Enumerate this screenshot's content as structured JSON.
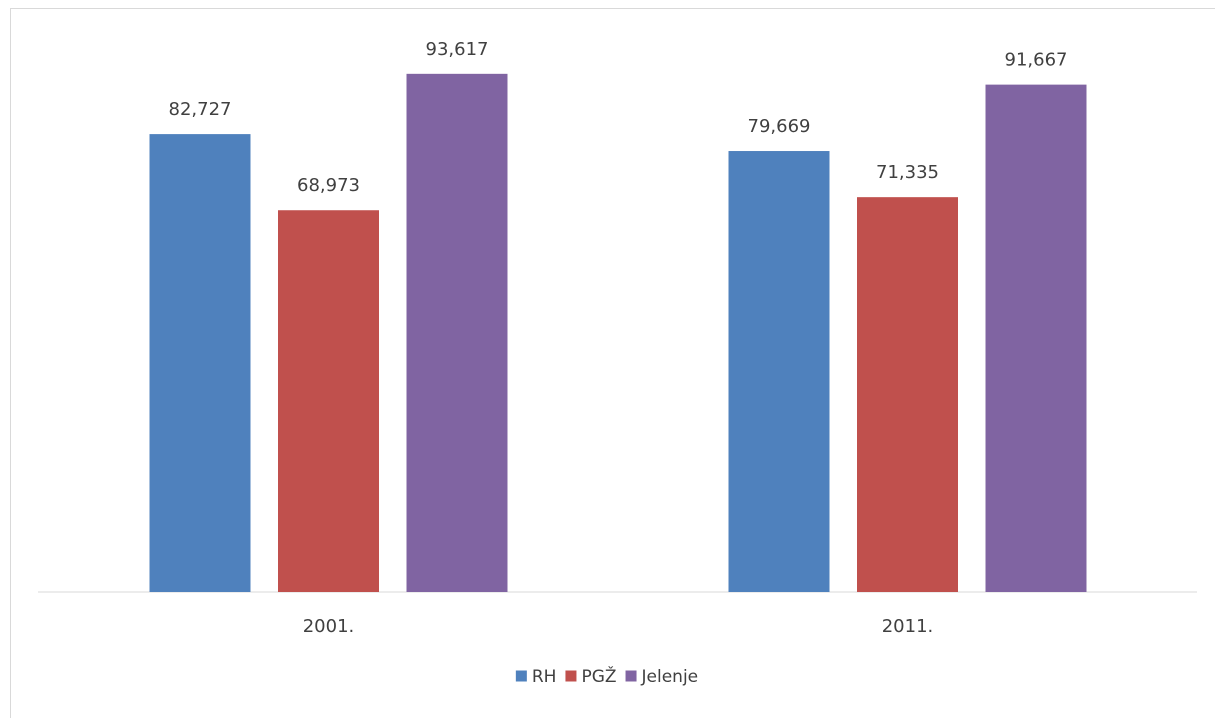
{
  "chart_data": {
    "type": "bar",
    "categories": [
      "2001.",
      "2011."
    ],
    "series": [
      {
        "name": "RH",
        "values": [
          82.727,
          79.669
        ],
        "labels": [
          "82,727",
          "79,669"
        ],
        "color": "#4f81bd"
      },
      {
        "name": "PGŽ",
        "values": [
          68.973,
          71.335
        ],
        "labels": [
          "68,973",
          "71,335"
        ],
        "color": "#c0504d"
      },
      {
        "name": "Jelenje",
        "values": [
          93.617,
          91.667
        ],
        "labels": [
          "93,617",
          "91,667"
        ],
        "color": "#8064a2"
      }
    ],
    "title": "",
    "xlabel": "",
    "ylabel": "",
    "ylim": [
      0,
      100
    ],
    "grid": false,
    "legend": "bottom",
    "axis_line_color": "#d9d9d9"
  }
}
